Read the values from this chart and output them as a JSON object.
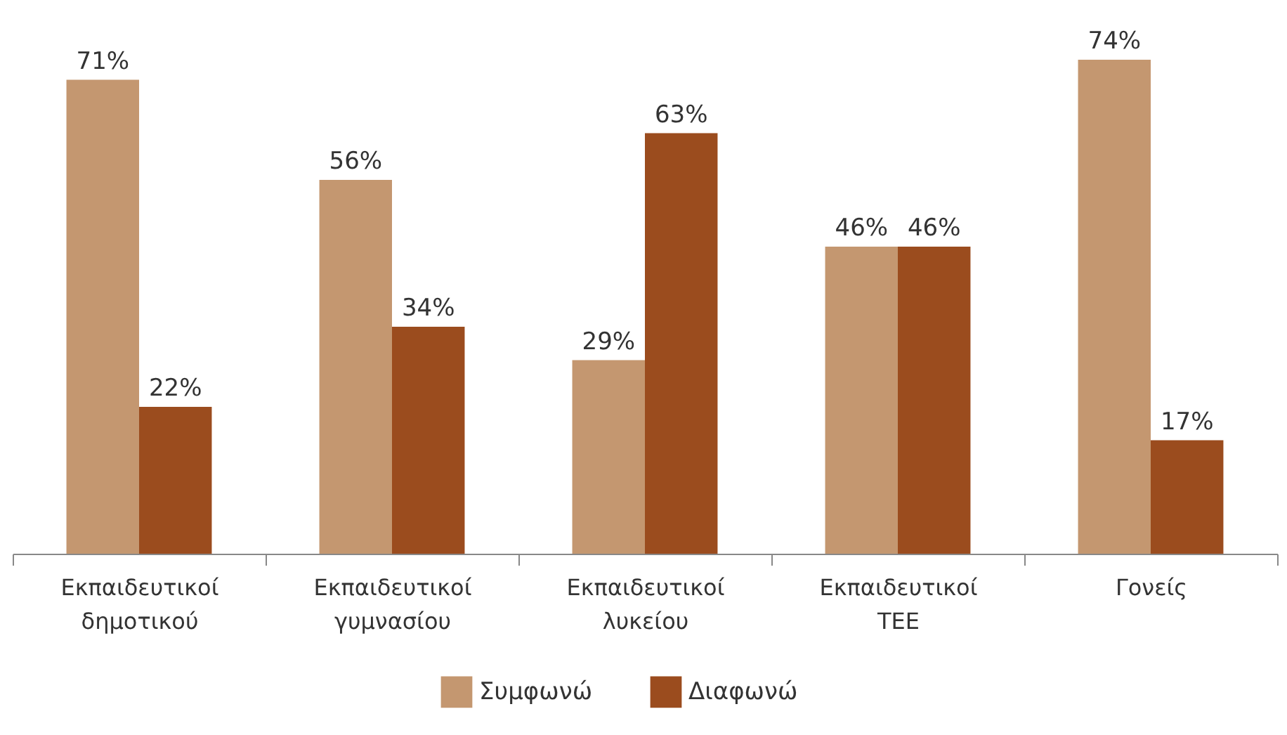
{
  "chart_data": {
    "type": "bar",
    "categories": [
      "Εκπαιδευτικοί δημοτικού",
      "Εκπαιδευτικοί γυμνασίου",
      "Εκπαιδευτικοί λυκείου",
      "Εκπαιδευτικοί ΤΕΕ",
      "Γονείς"
    ],
    "series": [
      {
        "name": "Συμφωνώ",
        "color": "#c49770",
        "values": [
          71,
          56,
          29,
          46,
          74
        ],
        "value_labels": [
          "71%",
          "56%",
          "29%",
          "46%",
          "74%"
        ]
      },
      {
        "name": "Διαφωνώ",
        "color": "#9b4c1e",
        "values": [
          22,
          34,
          63,
          46,
          17
        ],
        "value_labels": [
          "22%",
          "34%",
          "63%",
          "46%",
          "17%"
        ]
      }
    ],
    "legend": "bottom"
  }
}
